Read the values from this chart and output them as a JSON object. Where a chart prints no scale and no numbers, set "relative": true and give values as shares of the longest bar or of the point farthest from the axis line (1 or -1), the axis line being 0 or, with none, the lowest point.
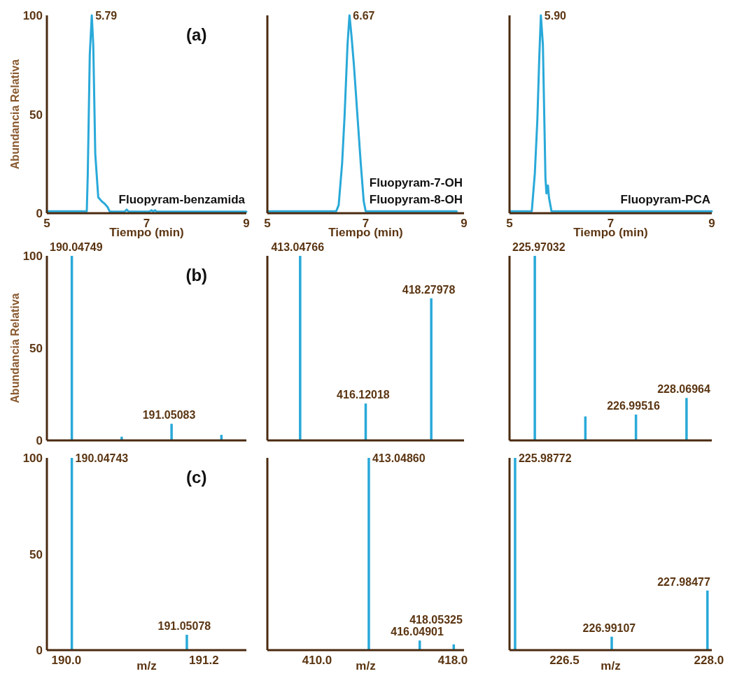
{
  "chart_data": [
    {
      "type": "line",
      "title": "(a)",
      "xlabel": "Tiempo (min)",
      "ylabel": "Abundancia Relativa",
      "color": "#29a9d9",
      "x": [
        5,
        5.8,
        5.82,
        5.86,
        5.9,
        5.93,
        5.97,
        6.03,
        6.1,
        6.15,
        6.22,
        6.26,
        6.5,
        6.56,
        6.6,
        6.64,
        7.05,
        7.1,
        7.13,
        7.17,
        7.2,
        9
      ],
      "values": [
        1,
        1,
        20,
        80,
        100,
        85,
        30,
        8,
        6,
        5,
        3,
        0.8,
        0.8,
        0.8,
        1.8,
        0.8,
        0.8,
        1.5,
        0.8,
        1.5,
        0.8,
        0.8
      ],
      "xlim": [
        5,
        9
      ],
      "ylim": [
        0,
        100
      ],
      "xticks": [
        5,
        7,
        9
      ],
      "yticks": [
        0,
        50,
        100
      ],
      "annotations": [
        {
          "text": "5.79",
          "x": 5.9,
          "y": 100
        },
        "Fluopyram-benzamida"
      ]
    },
    {
      "type": "line",
      "xlabel": "Tiempo (min)",
      "color": "#29a9d9",
      "x": [
        5,
        6.4,
        6.45,
        6.52,
        6.57,
        6.63,
        6.67,
        6.71,
        6.76,
        6.83,
        6.9,
        6.96,
        7.0,
        8.85
      ],
      "values": [
        1,
        1,
        4,
        25,
        49,
        85,
        100,
        90,
        75,
        50,
        25,
        6,
        1,
        1
      ],
      "xlim": [
        5,
        9
      ],
      "ylim": [
        0,
        100
      ],
      "xticks": [
        5,
        7,
        9
      ],
      "tick_labels": "x",
      "annotations": [
        {
          "text": "6.67",
          "x": 6.67,
          "y": 100
        },
        "Fluopyram-7-OH",
        "Fluopyram-8-OH"
      ]
    },
    {
      "type": "line",
      "xlabel": "Tiempo (min)",
      "color": "#29a9d9",
      "x": [
        5,
        5.44,
        5.5,
        5.55,
        5.59,
        5.62,
        5.66,
        5.69,
        5.71,
        5.73,
        5.76,
        5.78,
        5.83,
        9
      ],
      "values": [
        1,
        1,
        20,
        47,
        80,
        100,
        85,
        45,
        18,
        10,
        14,
        8,
        1,
        1
      ],
      "xlim": [
        5,
        9
      ],
      "ylim": [
        0,
        100
      ],
      "xticks": [
        5,
        7,
        9
      ],
      "tick_labels": "x",
      "annotations": [
        {
          "text": "5.90",
          "x": 5.62,
          "y": 100
        },
        "Fluopyram-PCA"
      ]
    },
    {
      "type": "bar",
      "title": "(b)",
      "ylabel": "Abundancia Relativa",
      "color": "#29a9d9",
      "categories": [
        null,
        null,
        null,
        null
      ],
      "values": [
        100,
        2,
        9,
        3
      ],
      "ylim": [
        0,
        100
      ],
      "yticks": [
        0,
        50,
        100
      ],
      "tick_labels": "y",
      "annotations": [
        {
          "text": "190.04749",
          "y": 100
        },
        {
          "text": "191.05083",
          "y": 9
        }
      ]
    },
    {
      "type": "bar",
      "color": "#29a9d9",
      "categories": [
        null,
        null,
        null
      ],
      "values": [
        100,
        20,
        77
      ],
      "ylim": [
        0,
        100
      ],
      "tick_labels": false,
      "annotations": [
        {
          "text": "413.04766",
          "y": 100
        },
        {
          "text": "416.12018",
          "y": 20
        },
        {
          "text": "418.27978",
          "y": 77
        }
      ]
    },
    {
      "type": "bar",
      "color": "#29a9d9",
      "categories": [
        null,
        null,
        null,
        null
      ],
      "values": [
        1,
        0.13,
        0.14,
        0.23
      ],
      "relative": true,
      "tick_labels": false,
      "annotations": [
        {
          "text": "225.97032",
          "y": 1
        },
        {
          "text": "226.99516",
          "y": 0.14
        },
        {
          "text": "228.06964",
          "y": 0.23
        }
      ]
    },
    {
      "type": "bar",
      "title": "(c)",
      "xlabel": "m/z",
      "color": "#29a9d9",
      "x": [
        190.04743,
        191.05078
      ],
      "values": [
        100,
        8
      ],
      "xlim": [
        189.83,
        191.57
      ],
      "ylim": [
        0,
        100
      ],
      "xticks": [
        {
          "value": 190,
          "label": "190.0"
        },
        {
          "value": 191.2,
          "label": "191.2"
        }
      ],
      "yticks": [
        0,
        50,
        100
      ],
      "annotations": [
        {
          "text": "190.04743",
          "x": 190.04743,
          "y": 100
        },
        {
          "text": "191.05078",
          "x": 191.05078,
          "y": 8
        }
      ]
    },
    {
      "type": "bar",
      "xlabel": "m/z",
      "color": "#29a9d9",
      "x": [
        413.0486,
        416.04901,
        418.05325
      ],
      "values": [
        100,
        5,
        3
      ],
      "xlim": [
        407.07,
        418.66
      ],
      "ylim": [
        0,
        100
      ],
      "xticks": [
        {
          "value": 410,
          "label": "410.0"
        },
        {
          "value": 418,
          "label": "418.0"
        }
      ],
      "tick_labels": "x",
      "annotations": [
        {
          "text": "413.04860",
          "x": 413.0486,
          "y": 100
        },
        {
          "text": "416.04901",
          "x": 416.04901,
          "y": 5
        },
        {
          "text": "418.05325",
          "x": 418.05325,
          "y": 3
        }
      ]
    },
    {
      "type": "bar",
      "xlabel": "m/z",
      "color": "#29a9d9",
      "x": [
        225.98772,
        226.99107,
        227.98477
      ],
      "values": [
        100,
        7,
        31
      ],
      "xlim": [
        225.93,
        228.03
      ],
      "ylim": [
        0,
        100
      ],
      "xticks": [
        226.5,
        {
          "value": 228,
          "label": "228.0"
        }
      ],
      "tick_labels": "x",
      "annotations": [
        {
          "text": "225.98772",
          "x": 225.98772,
          "y": 100
        },
        {
          "text": "226.99107",
          "x": 226.99107,
          "y": 7
        },
        {
          "text": "227.98477",
          "x": 227.98477,
          "y": 31
        }
      ]
    }
  ]
}
